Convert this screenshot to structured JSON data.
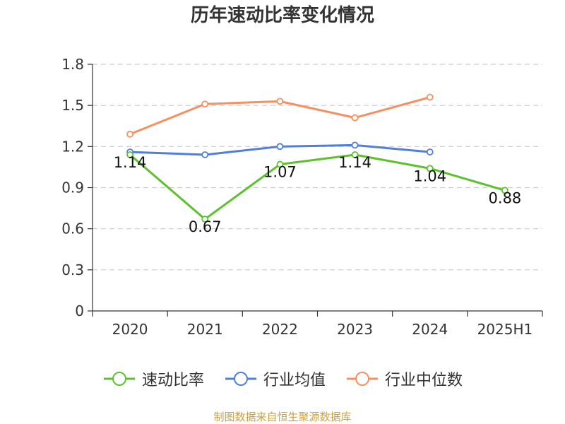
{
  "source_note": "制图数据来自恒生聚源数据库",
  "chart_data": {
    "type": "line",
    "title": "历年速动比率变化情况",
    "categories": [
      "2020",
      "2021",
      "2022",
      "2023",
      "2024",
      "2025H1"
    ],
    "ylim": [
      0,
      1.8
    ],
    "yticks": [
      "0",
      "0.3",
      "0.6",
      "0.9",
      "1.2",
      "1.5",
      "1.8"
    ],
    "grid": true,
    "legend_position": "bottom",
    "series": [
      {
        "name": "速动比率",
        "color": "#5cc22b",
        "values": [
          1.14,
          0.67,
          1.07,
          1.14,
          1.04,
          0.88
        ],
        "labels": [
          "1.14",
          "0.67",
          "1.07",
          "1.14",
          "1.04",
          "0.88"
        ],
        "show_labels": true
      },
      {
        "name": "行业均值",
        "color": "#4f7fdc",
        "values": [
          1.16,
          1.14,
          1.2,
          1.21,
          1.16,
          null
        ],
        "show_labels": false
      },
      {
        "name": "行业中位数",
        "color": "#f59060",
        "values": [
          1.29,
          1.51,
          1.53,
          1.41,
          1.56,
          null
        ],
        "show_labels": false
      }
    ]
  }
}
